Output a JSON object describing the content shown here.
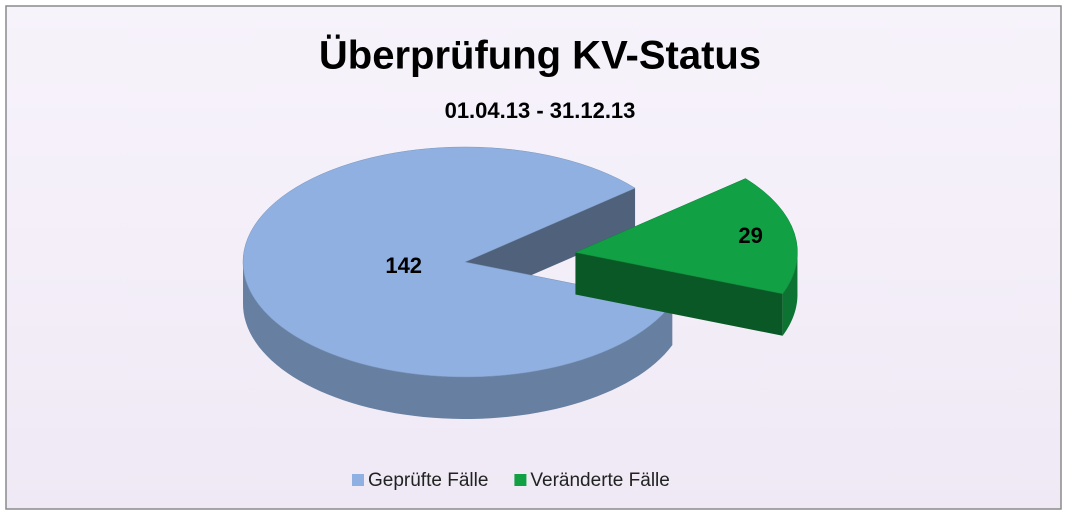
{
  "chart_data": {
    "type": "pie",
    "title": "Überprüfung KV-Status",
    "subtitle": "01.04.13 - 31.12.13",
    "categories": [
      "Geprüfte Fälle",
      "Veränderte Fälle"
    ],
    "values": [
      142,
      29
    ],
    "colors": [
      "#8fb0e0",
      "#12a045"
    ],
    "legend": "bottom"
  }
}
